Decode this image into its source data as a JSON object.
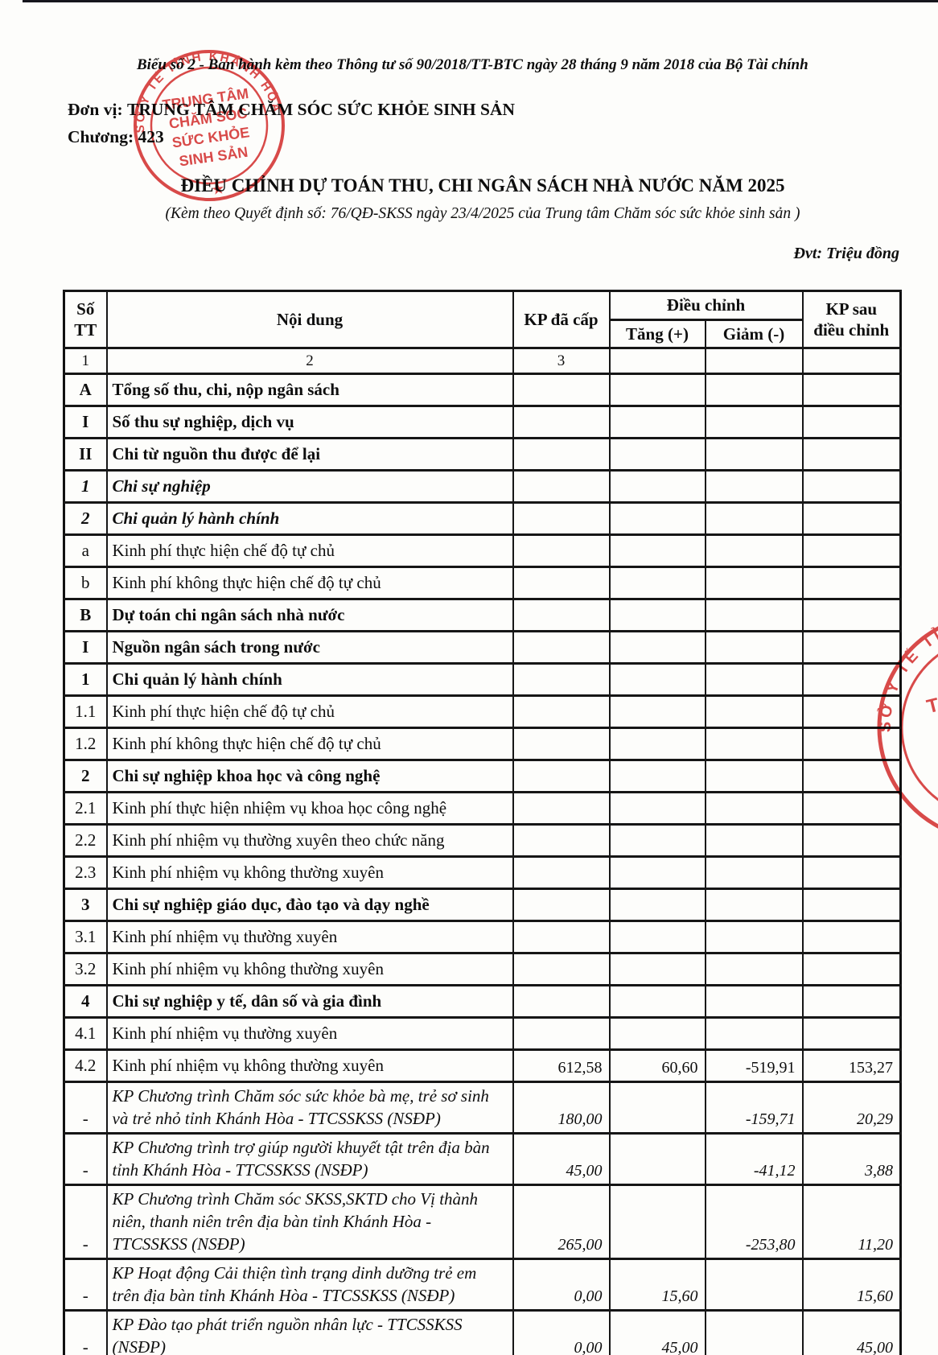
{
  "page": {
    "form_note": "Biểu số 2 - Ban hành kèm theo Thông tư số 90/2018/TT-BTC ngày 28 tháng 9 năm 2018 của Bộ Tài chính",
    "unit_label": "Đơn vị:",
    "unit_name": "TRUNG TÂM CHĂM SÓC SỨC KHỎE SINH SẢN",
    "chapter_label": "Chương:",
    "chapter_value": "423",
    "title": "ĐIỀU CHỈNH DỰ TOÁN THU, CHI NGÂN SÁCH NHÀ NƯỚC NĂM 2025",
    "subtitle": "(Kèm theo Quyết định số: 76/QĐ-SKSS ngày 23/4/2025 của Trung tâm Chăm sóc sức khỏe sinh sản )",
    "unit_note": "Đvt: Triệu đồng"
  },
  "stamp": {
    "ring_text": "SỞ Y TẾ TỈNH KHÁNH HÒA",
    "center_lines": [
      "TRUNG TÂM",
      "CHĂM SÓC",
      "SỨC KHỎE",
      "SINH SẢN"
    ],
    "star": "★",
    "color": "#d83c3c"
  },
  "table": {
    "header": {
      "col_stt_line1": "Số",
      "col_stt_line2": "TT",
      "col_content": "Nội dung",
      "col_granted": "KP đã cấp",
      "col_adjust": "Điều chỉnh",
      "col_increase": "Tăng (+)",
      "col_decrease": "Giảm (-)",
      "col_after_line1": "KP sau",
      "col_after_line2": "điều chỉnh"
    },
    "index_row": [
      "1",
      "2",
      "3",
      "",
      "",
      ""
    ],
    "rows": [
      {
        "stt": "A",
        "content": "Tổng số thu, chi, nộp ngân sách",
        "style": "bold",
        "granted": "",
        "increase": "",
        "decrease": "",
        "after": ""
      },
      {
        "stt": "I",
        "content": "Số thu sự nghiệp, dịch vụ",
        "style": "bold",
        "granted": "",
        "increase": "",
        "decrease": "",
        "after": ""
      },
      {
        "stt": "II",
        "content": "Chi từ nguồn thu được để lại",
        "style": "bold",
        "granted": "",
        "increase": "",
        "decrease": "",
        "after": ""
      },
      {
        "stt": "1",
        "content": "Chi sự nghiệp",
        "style": "bold-italic",
        "granted": "",
        "increase": "",
        "decrease": "",
        "after": ""
      },
      {
        "stt": "2",
        "content": "Chi quản lý hành chính",
        "style": "bold-italic",
        "granted": "",
        "increase": "",
        "decrease": "",
        "after": ""
      },
      {
        "stt": "a",
        "content": "Kinh phí thực hiện chế độ tự chủ",
        "style": "normal",
        "granted": "",
        "increase": "",
        "decrease": "",
        "after": ""
      },
      {
        "stt": "b",
        "content": "Kinh phí không thực hiện chế độ tự chủ",
        "style": "normal",
        "granted": "",
        "increase": "",
        "decrease": "",
        "after": ""
      },
      {
        "stt": "B",
        "content": "Dự toán chi ngân sách nhà nước",
        "style": "bold",
        "granted": "",
        "increase": "",
        "decrease": "",
        "after": ""
      },
      {
        "stt": "I",
        "content": "Nguồn ngân sách trong nước",
        "style": "bold",
        "granted": "",
        "increase": "",
        "decrease": "",
        "after": ""
      },
      {
        "stt": "1",
        "content": "Chi quản lý hành chính",
        "style": "bold",
        "granted": "",
        "increase": "",
        "decrease": "",
        "after": ""
      },
      {
        "stt": "1.1",
        "content": "Kinh phí thực hiện chế độ tự chủ",
        "style": "normal",
        "granted": "",
        "increase": "",
        "decrease": "",
        "after": ""
      },
      {
        "stt": "1.2",
        "content": "Kinh phí không thực hiện chế độ tự chủ",
        "style": "normal",
        "granted": "",
        "increase": "",
        "decrease": "",
        "after": ""
      },
      {
        "stt": "2",
        "content": "Chi sự nghiệp khoa học và công nghệ",
        "style": "bold",
        "granted": "",
        "increase": "",
        "decrease": "",
        "after": ""
      },
      {
        "stt": "2.1",
        "content": "Kinh phí thực hiện nhiệm vụ khoa học công nghệ",
        "style": "normal",
        "granted": "",
        "increase": "",
        "decrease": "",
        "after": ""
      },
      {
        "stt": "2.2",
        "content": "Kinh phí nhiệm vụ thường xuyên theo chức năng",
        "style": "normal",
        "granted": "",
        "increase": "",
        "decrease": "",
        "after": ""
      },
      {
        "stt": "2.3",
        "content": "Kinh phí nhiệm vụ không thường xuyên",
        "style": "normal",
        "granted": "",
        "increase": "",
        "decrease": "",
        "after": ""
      },
      {
        "stt": "3",
        "content": "Chi sự nghiệp giáo dục, đào tạo và dạy nghề",
        "style": "bold",
        "granted": "",
        "increase": "",
        "decrease": "",
        "after": ""
      },
      {
        "stt": "3.1",
        "content": "Kinh phí nhiệm vụ thường xuyên",
        "style": "normal",
        "granted": "",
        "increase": "",
        "decrease": "",
        "after": ""
      },
      {
        "stt": "3.2",
        "content": "Kinh phí nhiệm vụ không thường xuyên",
        "style": "normal",
        "granted": "",
        "increase": "",
        "decrease": "",
        "after": ""
      },
      {
        "stt": "4",
        "content": "Chi sự nghiệp y tế, dân số và gia đình",
        "style": "bold",
        "granted": "",
        "increase": "",
        "decrease": "",
        "after": ""
      },
      {
        "stt": "4.1",
        "content": "Kinh phí nhiệm vụ thường xuyên",
        "style": "normal",
        "granted": "",
        "increase": "",
        "decrease": "",
        "after": ""
      },
      {
        "stt": "4.2",
        "content": "Kinh phí nhiệm vụ không thường xuyên",
        "style": "normal",
        "granted": "612,58",
        "increase": "60,60",
        "decrease": "-519,91",
        "after": "153,27"
      },
      {
        "stt": "-",
        "content": "KP Chương trình Chăm sóc sức khỏe bà mẹ, trẻ sơ sinh và trẻ nhỏ tỉnh Khánh Hòa - TTCSSKSS (NSĐP)",
        "style": "detail",
        "granted": "180,00",
        "increase": "",
        "decrease": "-159,71",
        "after": "20,29"
      },
      {
        "stt": "-",
        "content": "KP Chương trình trợ giúp người khuyết tật trên địa bàn tỉnh Khánh Hòa - TTCSSKSS (NSĐP)",
        "style": "detail",
        "granted": "45,00",
        "increase": "",
        "decrease": "-41,12",
        "after": "3,88"
      },
      {
        "stt": "-",
        "content": "KP Chương trình Chăm sóc SKSS,SKTD cho Vị thành niên, thanh niên trên địa bàn tỉnh Khánh Hòa - TTCSSKSS (NSĐP)",
        "style": "detail",
        "granted": "265,00",
        "increase": "",
        "decrease": "-253,80",
        "after": "11,20"
      },
      {
        "stt": "-",
        "content": "KP Hoạt động Cải thiện tình trạng dinh dưỡng trẻ em trên địa bàn tỉnh Khánh Hòa - TTCSSKSS (NSĐP)",
        "style": "detail",
        "granted": "0,00",
        "increase": "15,60",
        "decrease": "",
        "after": "15,60"
      },
      {
        "stt": "-",
        "content": "KP Đào tạo phát triển nguồn nhân lực - TTCSSKSS (NSĐP)",
        "style": "detail",
        "granted": "0,00",
        "increase": "45,00",
        "decrease": "",
        "after": "45,00"
      }
    ]
  }
}
